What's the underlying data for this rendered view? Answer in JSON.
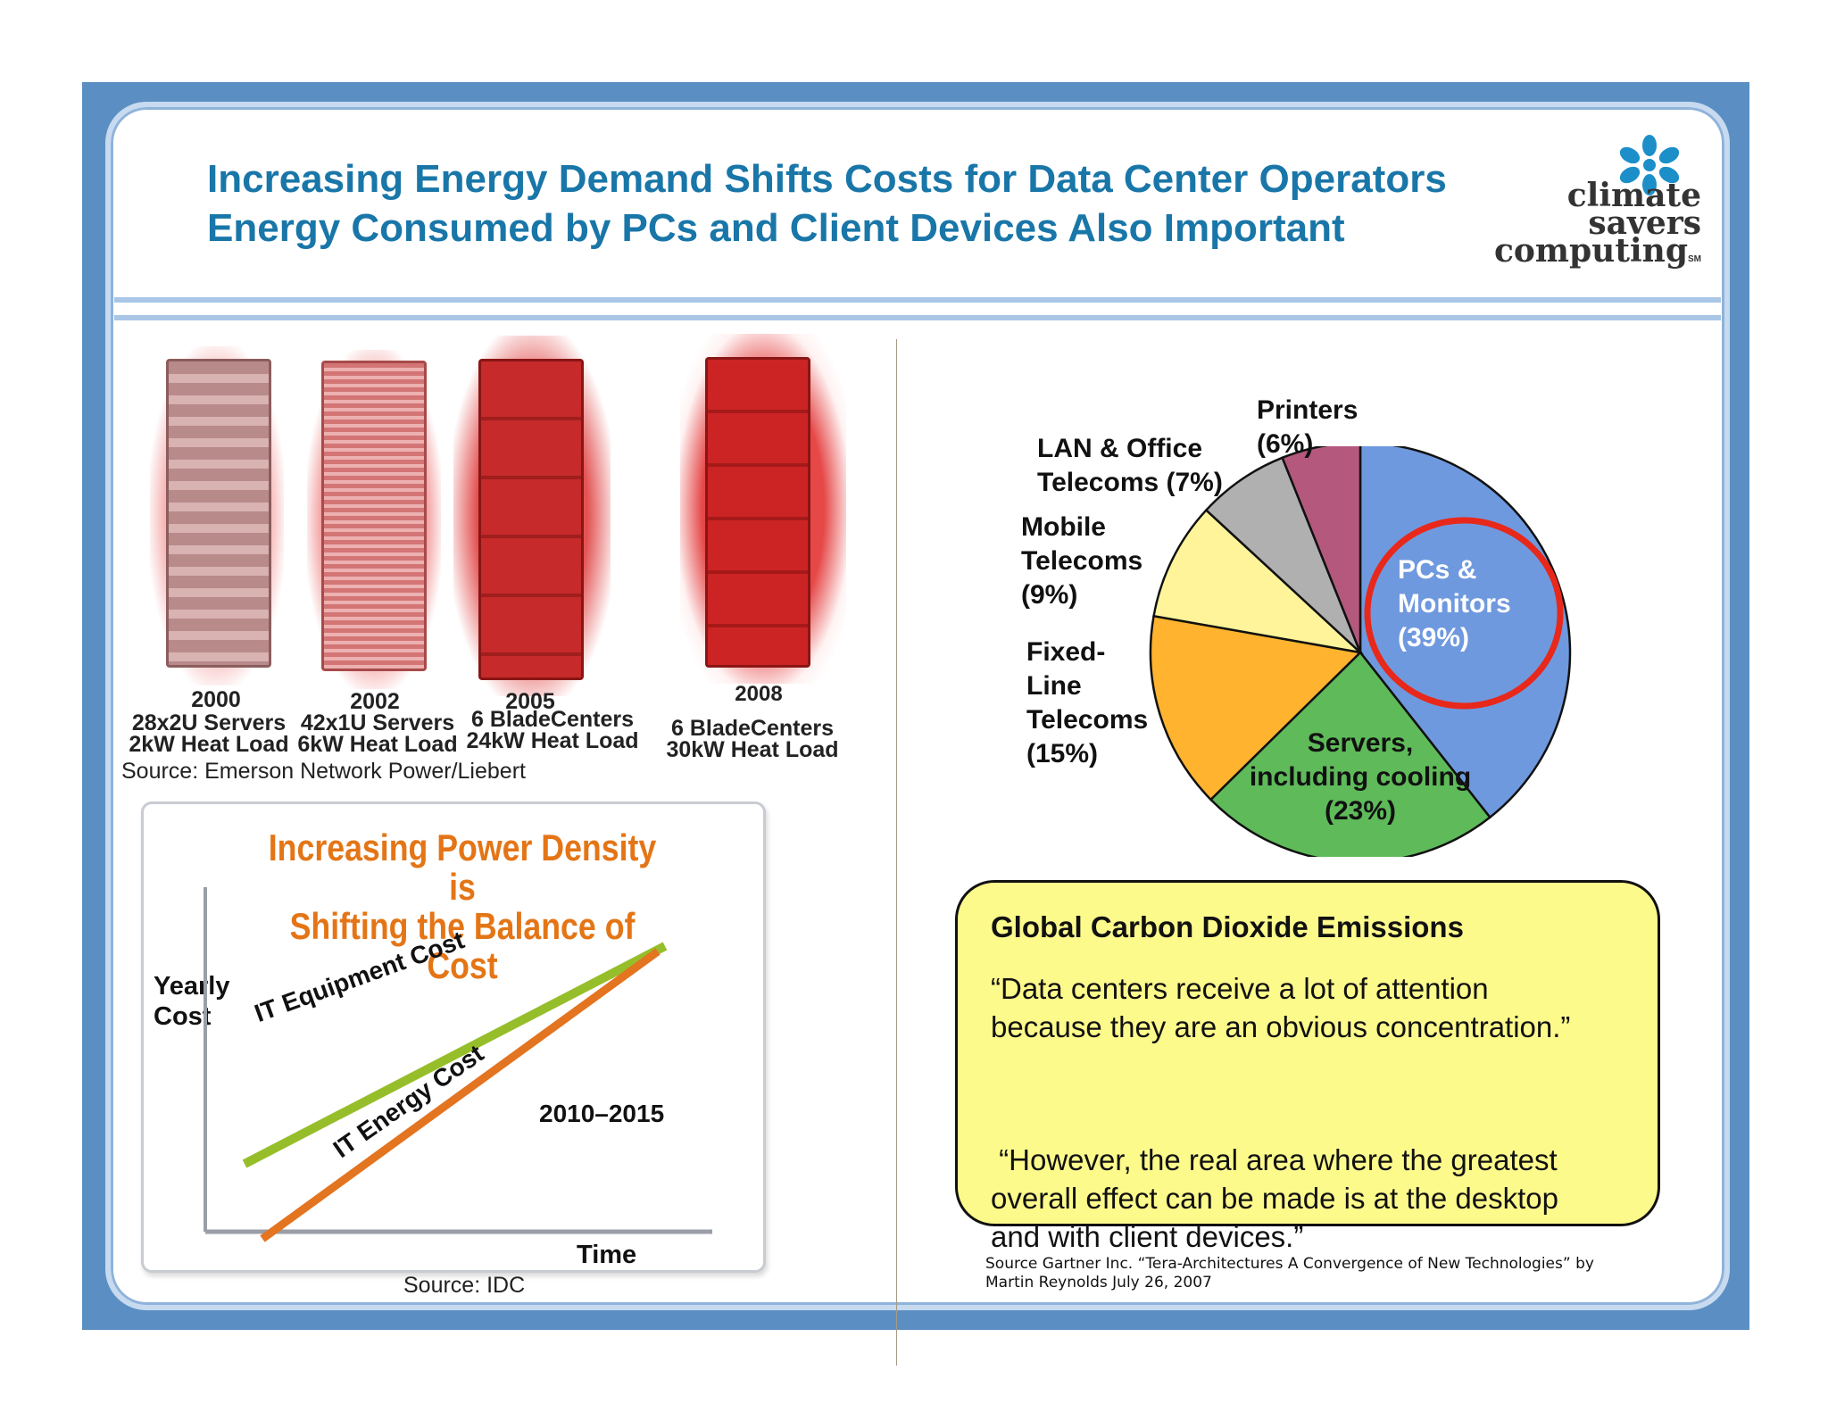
{
  "header": {
    "title_line1": "Increasing Energy Demand Shifts Costs for Data Center Operators",
    "title_line2": "Energy Consumed by PCs and Client Devices Also Important",
    "logo": {
      "line1": "climate",
      "line2": "savers",
      "line3": "computing",
      "mark": "SM"
    }
  },
  "racks": {
    "items": [
      {
        "year": "2000",
        "line1": "28x2U Servers",
        "line2": "2kW Heat Load"
      },
      {
        "year": "2002",
        "line1": "42x1U Servers",
        "line2": "6kW Heat Load"
      },
      {
        "year": "2005",
        "line1": "6 BladeCenters",
        "line2": "24kW Heat Load"
      },
      {
        "year": "2008",
        "line1": "6 BladeCenters",
        "line2": "30kW Heat Load"
      }
    ],
    "source": "Source: Emerson Network Power/Liebert"
  },
  "trend": {
    "title_line1": "Increasing Power Density is",
    "title_line2": "Shifting the Balance of Cost",
    "y_label_line1": "Yearly",
    "y_label_line2": "Cost",
    "x_label": "Time",
    "equipment_label": "IT Equipment Cost",
    "energy_label": "IT Energy Cost",
    "crossover_label": "2010–2015",
    "source": "Source: IDC"
  },
  "chart_data": {
    "type": "pie",
    "slices": [
      {
        "label": "PCs & Monitors",
        "value": 39
      },
      {
        "label": "Servers, including cooling",
        "value": 23
      },
      {
        "label": "Fixed-Line Telecoms",
        "value": 15
      },
      {
        "label": "Mobile Telecoms",
        "value": 9
      },
      {
        "label": "LAN & Office Telecoms",
        "value": 7
      },
      {
        "label": "Printers",
        "value": 6
      }
    ],
    "colors": [
      "#6f99de",
      "#5fba5a",
      "#ffb32e",
      "#fff49a",
      "#b0b0b0",
      "#b4587e"
    ],
    "highlight": "PCs & Monitors",
    "highlight_color": "#e8281a"
  },
  "pie_labels": {
    "pcs": [
      "PCs &",
      "Monitors",
      "(39%)"
    ],
    "servers": [
      "Servers,",
      "including cooling",
      "(23%)"
    ],
    "fixed": [
      "Fixed-",
      "Line",
      "Telecoms",
      "(15%)"
    ],
    "mobile": [
      "Mobile",
      "Telecoms",
      "(9%)"
    ],
    "lan": [
      "LAN & Office",
      "Telecoms (7%)"
    ],
    "printers": [
      "Printers",
      "(6%)"
    ]
  },
  "quote": {
    "heading": "Global Carbon Dioxide Emissions",
    "para1_line1": "“Data centers receive a lot of attention",
    "para1_line2": "because they are an obvious concentration.”",
    "para2_line1": " “However, the real area where the greatest",
    "para2_line2": "overall effect can be made is at the desktop",
    "para2_line3": "and with client devices.”",
    "source_line1": "Source Gartner Inc. “Tera-Architectures A Convergence of New Technologies” by",
    "source_line2": "Martin Reynolds July 26, 2007"
  }
}
